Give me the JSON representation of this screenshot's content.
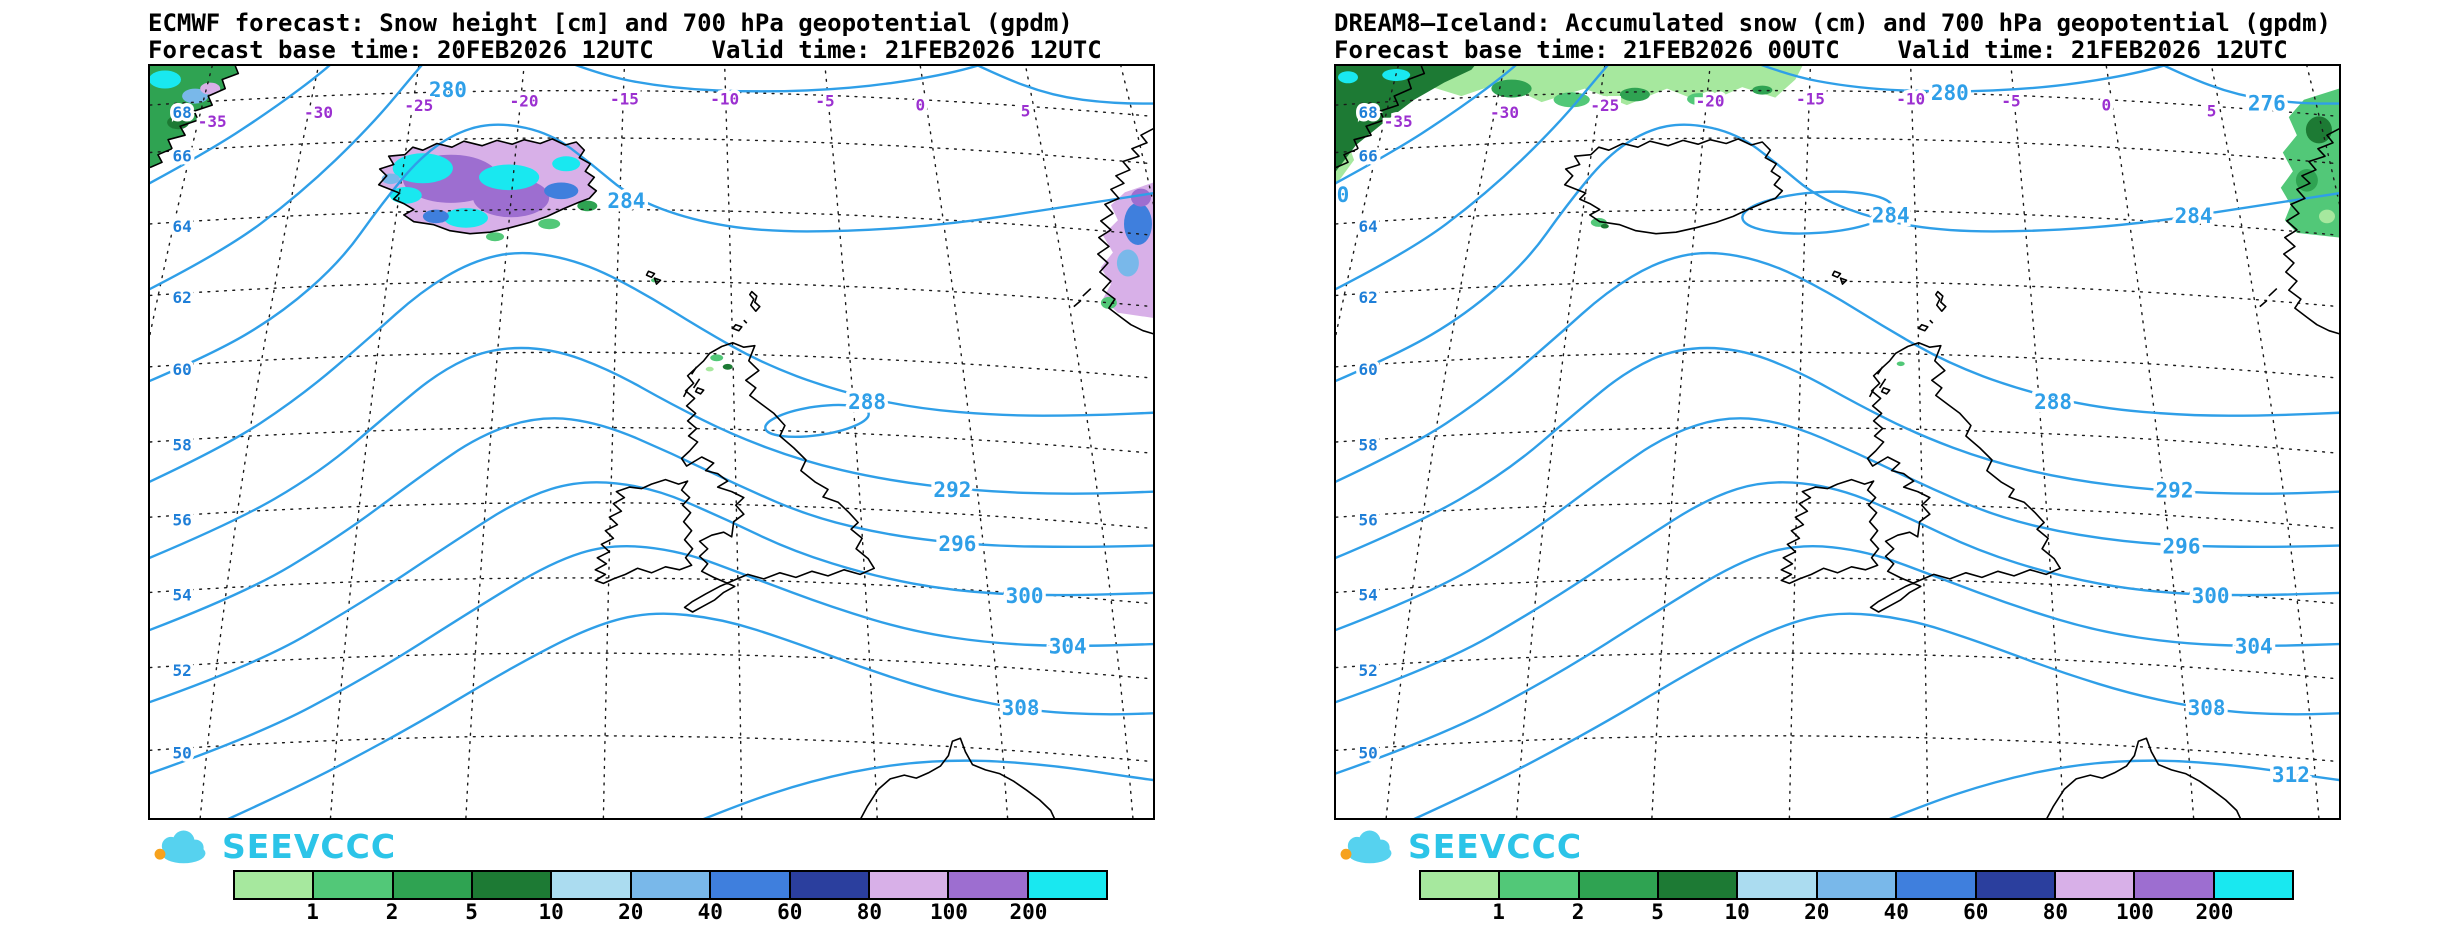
{
  "palette": {
    "contour_blue": "#2f9fe8",
    "lat_label_blue": "#1f7fd8",
    "lon_label_purple": "#9b30d0",
    "graticule_black": "#1a1a1a",
    "coast_black": "#000000",
    "logo_cyan": "#2cc4e8",
    "logo_cloud": "#56d2ef",
    "logo_orange": "#f6a21d"
  },
  "colorbar": {
    "tick_labels": [
      "1",
      "2",
      "5",
      "10",
      "20",
      "40",
      "60",
      "80",
      "100",
      "200"
    ],
    "colors": [
      "#a6e89e",
      "#52c878",
      "#2fa352",
      "#1d7a34",
      "#abdcf0",
      "#79b8ea",
      "#3f7fdd",
      "#2b3f9e",
      "#d8b0e8",
      "#9d6ed0",
      "#19e8f0"
    ]
  },
  "logo": {
    "text": "SEEVCCC"
  },
  "map_labels": {
    "latitudes": [
      "68",
      "66",
      "64",
      "62",
      "60",
      "58",
      "56",
      "54",
      "52",
      "50"
    ],
    "longitudes": [
      "-35",
      "-30",
      "-25",
      "-20",
      "-15",
      "-10",
      "-5",
      "0",
      "5"
    ]
  },
  "panels": [
    {
      "id": "ecmwf",
      "title": "ECMWF forecast: Snow height [cm] and 700 hPa geopotential (gpdm)",
      "subtitle": "Forecast base time: 20FEB2026 12UTC    Valid time: 21FEB2026 12UTC",
      "contour_labels": [
        "280",
        "284",
        "288",
        "292",
        "296",
        "300",
        "304",
        "308"
      ]
    },
    {
      "id": "dream8",
      "title": "DREAM8–Iceland: Accumulated snow (cm) and 700 hPa geopotential (gpdm)",
      "subtitle": "Forecast base time: 21FEB2026 00UTC    Valid time: 21FEB2026 12UTC",
      "contour_labels": [
        "276",
        "280",
        "0",
        "284",
        "284",
        "288",
        "292",
        "296",
        "300",
        "304",
        "308",
        "312"
      ]
    }
  ]
}
